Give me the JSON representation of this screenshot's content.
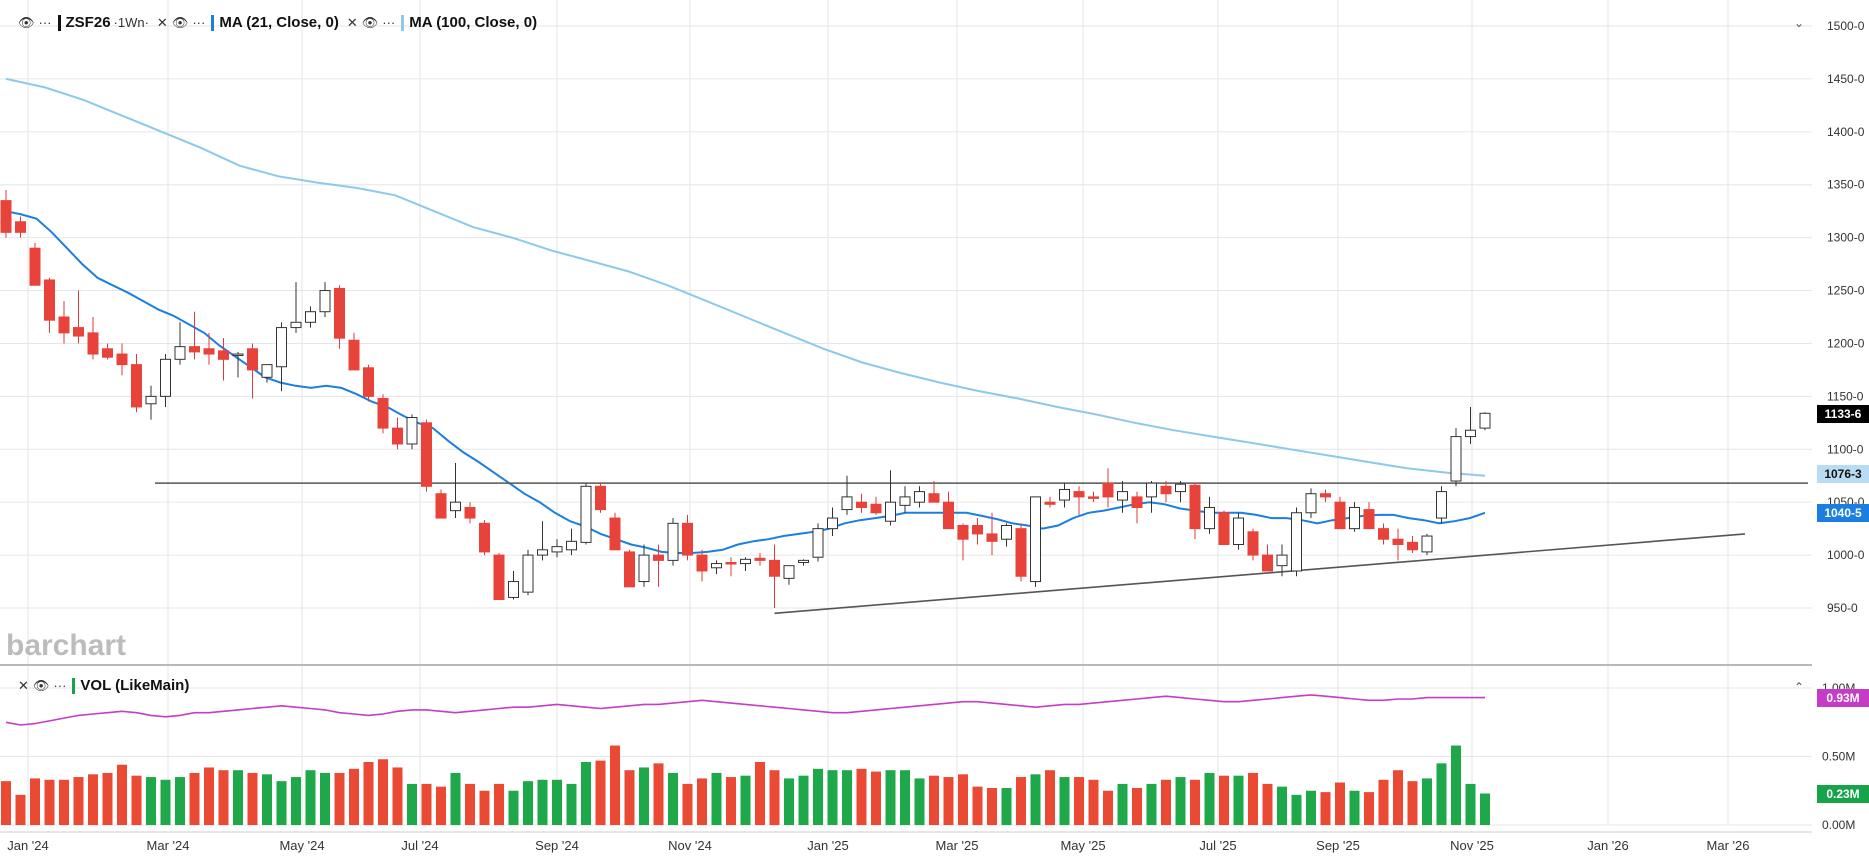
{
  "legend_main": [
    {
      "label": "ZSF26",
      "sub": "·1Wn·",
      "color": "#111111"
    },
    {
      "label": "MA (21, Close, 0)",
      "color": "#1a7fe0"
    },
    {
      "label": "MA (100, Close, 0)",
      "color": "#8ec8ea"
    }
  ],
  "legend_volume": {
    "label": "VOL (LikeMain)",
    "color": "#16a34a"
  },
  "watermark": "barchart",
  "price_tags": [
    {
      "value": "1133-6",
      "bg": "#000000",
      "fg": "#ffffff"
    },
    {
      "value": "1076-3",
      "bg": "#b9dcf2",
      "fg": "#111111"
    },
    {
      "value": "1040-5",
      "bg": "#1a7fe0",
      "fg": "#ffffff"
    }
  ],
  "volume_tags": [
    {
      "value": "0.93M",
      "bg": "#c53cc7",
      "fg": "#ffffff"
    },
    {
      "value": "0.23M",
      "bg": "#16a34a",
      "fg": "#ffffff"
    }
  ],
  "chart_data": {
    "type": "candlestick",
    "symbol": "ZSF26",
    "interval": "1W",
    "price_axis": {
      "ylim": [
        930,
        1510
      ],
      "ticks": [
        "950-0",
        "1000-0",
        "1050-0",
        "1100-0",
        "1150-0",
        "1200-0",
        "1250-0",
        "1300-0",
        "1350-0",
        "1400-0",
        "1450-0",
        "1500-0"
      ]
    },
    "volume_axis": {
      "ylim": [
        0,
        1.0
      ],
      "ticks": [
        "0.00M",
        "0.50M",
        "1.00M"
      ]
    },
    "x_axis": {
      "ticks": [
        "Jan '24",
        "Mar '24",
        "May '24",
        "Jul '24",
        "Sep '24",
        "Nov '24",
        "Jan '25",
        "Mar '25",
        "May '25",
        "Jul '25",
        "Sep '25",
        "Nov '25",
        "Jan '26",
        "Mar '26"
      ]
    },
    "candles": [
      {
        "o": 1335,
        "h": 1345,
        "l": 1300,
        "c": 1305
      },
      {
        "o": 1315,
        "h": 1320,
        "l": 1300,
        "c": 1305
      },
      {
        "o": 1290,
        "h": 1295,
        "l": 1255,
        "c": 1255
      },
      {
        "o": 1260,
        "h": 1262,
        "l": 1210,
        "c": 1222
      },
      {
        "o": 1225,
        "h": 1240,
        "l": 1200,
        "c": 1210
      },
      {
        "o": 1215,
        "h": 1250,
        "l": 1200,
        "c": 1207
      },
      {
        "o": 1210,
        "h": 1225,
        "l": 1185,
        "c": 1190
      },
      {
        "o": 1195,
        "h": 1200,
        "l": 1185,
        "c": 1187
      },
      {
        "o": 1190,
        "h": 1200,
        "l": 1170,
        "c": 1180
      },
      {
        "o": 1180,
        "h": 1190,
        "l": 1135,
        "c": 1140
      },
      {
        "o": 1143,
        "h": 1160,
        "l": 1128,
        "c": 1150
      },
      {
        "o": 1150,
        "h": 1190,
        "l": 1140,
        "c": 1185
      },
      {
        "o": 1185,
        "h": 1220,
        "l": 1180,
        "c": 1197
      },
      {
        "o": 1197,
        "h": 1230,
        "l": 1185,
        "c": 1192
      },
      {
        "o": 1195,
        "h": 1210,
        "l": 1180,
        "c": 1190
      },
      {
        "o": 1193,
        "h": 1205,
        "l": 1165,
        "c": 1185
      },
      {
        "o": 1190,
        "h": 1192,
        "l": 1168,
        "c": 1190
      },
      {
        "o": 1195,
        "h": 1200,
        "l": 1148,
        "c": 1175
      },
      {
        "o": 1168,
        "h": 1180,
        "l": 1163,
        "c": 1180
      },
      {
        "o": 1178,
        "h": 1220,
        "l": 1155,
        "c": 1215
      },
      {
        "o": 1215,
        "h": 1258,
        "l": 1210,
        "c": 1220
      },
      {
        "o": 1220,
        "h": 1235,
        "l": 1215,
        "c": 1230
      },
      {
        "o": 1230,
        "h": 1258,
        "l": 1225,
        "c": 1250
      },
      {
        "o": 1252,
        "h": 1255,
        "l": 1195,
        "c": 1205
      },
      {
        "o": 1203,
        "h": 1210,
        "l": 1175,
        "c": 1175
      },
      {
        "o": 1177,
        "h": 1180,
        "l": 1145,
        "c": 1150
      },
      {
        "o": 1148,
        "h": 1152,
        "l": 1115,
        "c": 1120
      },
      {
        "o": 1120,
        "h": 1130,
        "l": 1100,
        "c": 1105
      },
      {
        "o": 1105,
        "h": 1133,
        "l": 1100,
        "c": 1130
      },
      {
        "o": 1125,
        "h": 1128,
        "l": 1060,
        "c": 1065
      },
      {
        "o": 1058,
        "h": 1062,
        "l": 1035,
        "c": 1035
      },
      {
        "o": 1042,
        "h": 1087,
        "l": 1035,
        "c": 1050
      },
      {
        "o": 1045,
        "h": 1050,
        "l": 1030,
        "c": 1035
      },
      {
        "o": 1030,
        "h": 1033,
        "l": 1000,
        "c": 1003
      },
      {
        "o": 1000,
        "h": 1002,
        "l": 958,
        "c": 958
      },
      {
        "o": 960,
        "h": 985,
        "l": 958,
        "c": 975
      },
      {
        "o": 965,
        "h": 1005,
        "l": 962,
        "c": 1000
      },
      {
        "o": 1000,
        "h": 1032,
        "l": 995,
        "c": 1005
      },
      {
        "o": 1003,
        "h": 1015,
        "l": 998,
        "c": 1008
      },
      {
        "o": 1005,
        "h": 1025,
        "l": 1000,
        "c": 1013
      },
      {
        "o": 1012,
        "h": 1068,
        "l": 1010,
        "c": 1065
      },
      {
        "o": 1065,
        "h": 1068,
        "l": 1040,
        "c": 1043
      },
      {
        "o": 1035,
        "h": 1040,
        "l": 1005,
        "c": 1005
      },
      {
        "o": 1003,
        "h": 1005,
        "l": 970,
        "c": 970
      },
      {
        "o": 975,
        "h": 1010,
        "l": 970,
        "c": 1000
      },
      {
        "o": 1000,
        "h": 1010,
        "l": 970,
        "c": 995
      },
      {
        "o": 995,
        "h": 1035,
        "l": 990,
        "c": 1030
      },
      {
        "o": 1030,
        "h": 1038,
        "l": 995,
        "c": 1000
      },
      {
        "o": 1000,
        "h": 1005,
        "l": 975,
        "c": 985
      },
      {
        "o": 988,
        "h": 995,
        "l": 982,
        "c": 992
      },
      {
        "o": 993,
        "h": 998,
        "l": 980,
        "c": 992
      },
      {
        "o": 992,
        "h": 998,
        "l": 985,
        "c": 996
      },
      {
        "o": 997,
        "h": 1002,
        "l": 990,
        "c": 995
      },
      {
        "o": 995,
        "h": 1010,
        "l": 950,
        "c": 980
      },
      {
        "o": 978,
        "h": 990,
        "l": 972,
        "c": 990
      },
      {
        "o": 993,
        "h": 996,
        "l": 990,
        "c": 995
      },
      {
        "o": 998,
        "h": 1030,
        "l": 994,
        "c": 1025
      },
      {
        "o": 1025,
        "h": 1045,
        "l": 1018,
        "c": 1035
      },
      {
        "o": 1043,
        "h": 1075,
        "l": 1038,
        "c": 1055
      },
      {
        "o": 1050,
        "h": 1058,
        "l": 1040,
        "c": 1045
      },
      {
        "o": 1048,
        "h": 1055,
        "l": 1038,
        "c": 1040
      },
      {
        "o": 1032,
        "h": 1080,
        "l": 1028,
        "c": 1050
      },
      {
        "o": 1047,
        "h": 1065,
        "l": 1040,
        "c": 1055
      },
      {
        "o": 1050,
        "h": 1065,
        "l": 1045,
        "c": 1060
      },
      {
        "o": 1058,
        "h": 1070,
        "l": 1050,
        "c": 1050
      },
      {
        "o": 1050,
        "h": 1060,
        "l": 1025,
        "c": 1025
      },
      {
        "o": 1028,
        "h": 1030,
        "l": 995,
        "c": 1015
      },
      {
        "o": 1028,
        "h": 1035,
        "l": 1010,
        "c": 1020
      },
      {
        "o": 1020,
        "h": 1040,
        "l": 1000,
        "c": 1013
      },
      {
        "o": 1015,
        "h": 1030,
        "l": 1008,
        "c": 1028
      },
      {
        "o": 1025,
        "h": 1030,
        "l": 975,
        "c": 980
      },
      {
        "o": 975,
        "h": 1055,
        "l": 970,
        "c": 1055
      },
      {
        "o": 1050,
        "h": 1055,
        "l": 1045,
        "c": 1048
      },
      {
        "o": 1052,
        "h": 1068,
        "l": 1045,
        "c": 1062
      },
      {
        "o": 1060,
        "h": 1065,
        "l": 1038,
        "c": 1055
      },
      {
        "o": 1055,
        "h": 1060,
        "l": 1050,
        "c": 1054
      },
      {
        "o": 1068,
        "h": 1082,
        "l": 1045,
        "c": 1055
      },
      {
        "o": 1052,
        "h": 1070,
        "l": 1040,
        "c": 1060
      },
      {
        "o": 1055,
        "h": 1060,
        "l": 1030,
        "c": 1045
      },
      {
        "o": 1055,
        "h": 1070,
        "l": 1040,
        "c": 1068
      },
      {
        "o": 1065,
        "h": 1070,
        "l": 1050,
        "c": 1058
      },
      {
        "o": 1060,
        "h": 1070,
        "l": 1050,
        "c": 1067
      },
      {
        "o": 1066,
        "h": 1068,
        "l": 1015,
        "c": 1025
      },
      {
        "o": 1025,
        "h": 1055,
        "l": 1020,
        "c": 1045
      },
      {
        "o": 1040,
        "h": 1042,
        "l": 1010,
        "c": 1010
      },
      {
        "o": 1010,
        "h": 1040,
        "l": 1005,
        "c": 1035
      },
      {
        "o": 1022,
        "h": 1025,
        "l": 995,
        "c": 1000
      },
      {
        "o": 1000,
        "h": 1010,
        "l": 988,
        "c": 985
      },
      {
        "o": 990,
        "h": 1010,
        "l": 980,
        "c": 1000
      },
      {
        "o": 985,
        "h": 1045,
        "l": 980,
        "c": 1040
      },
      {
        "o": 1040,
        "h": 1063,
        "l": 1035,
        "c": 1058
      },
      {
        "o": 1058,
        "h": 1062,
        "l": 1050,
        "c": 1055
      },
      {
        "o": 1050,
        "h": 1055,
        "l": 1025,
        "c": 1025
      },
      {
        "o": 1025,
        "h": 1050,
        "l": 1022,
        "c": 1045
      },
      {
        "o": 1043,
        "h": 1050,
        "l": 1025,
        "c": 1025
      },
      {
        "o": 1025,
        "h": 1030,
        "l": 1010,
        "c": 1015
      },
      {
        "o": 1015,
        "h": 1025,
        "l": 995,
        "c": 1010
      },
      {
        "o": 1012,
        "h": 1018,
        "l": 1002,
        "c": 1005
      },
      {
        "o": 1003,
        "h": 1020,
        "l": 1000,
        "c": 1018
      },
      {
        "o": 1035,
        "h": 1065,
        "l": 1030,
        "c": 1060
      },
      {
        "o": 1070,
        "h": 1120,
        "l": 1065,
        "c": 1112
      },
      {
        "o": 1112,
        "h": 1140,
        "l": 1105,
        "c": 1118
      },
      {
        "o": 1120,
        "h": 1135,
        "l": 1118,
        "c": 1134
      }
    ],
    "ma21": [
      1325,
      1322,
      1318,
      1305,
      1290,
      1275,
      1262,
      1255,
      1248,
      1240,
      1232,
      1226,
      1218,
      1210,
      1198,
      1188,
      1178,
      1168,
      1163,
      1160,
      1158,
      1160,
      1158,
      1152,
      1145,
      1140,
      1132,
      1125,
      1120,
      1108,
      1097,
      1088,
      1078,
      1068,
      1058,
      1050,
      1040,
      1032,
      1027,
      1020,
      1015,
      1010,
      1007,
      1003,
      1002,
      1002,
      1003,
      1005,
      1010,
      1013,
      1015,
      1018,
      1020,
      1022,
      1025,
      1030,
      1033,
      1035,
      1037,
      1040,
      1040,
      1040,
      1040,
      1040,
      1037,
      1034,
      1030,
      1028,
      1025,
      1028,
      1035,
      1040,
      1042,
      1045,
      1048,
      1050,
      1048,
      1044,
      1042,
      1040,
      1040,
      1040,
      1038,
      1035,
      1035,
      1033,
      1030,
      1033,
      1035,
      1037,
      1038,
      1038,
      1035,
      1033,
      1030,
      1032,
      1035,
      1040
    ],
    "ma100": [
      1450,
      1442,
      1430,
      1415,
      1400,
      1385,
      1368,
      1358,
      1352,
      1347,
      1340,
      1325,
      1310,
      1300,
      1288,
      1278,
      1268,
      1255,
      1240,
      1225,
      1210,
      1195,
      1182,
      1172,
      1163,
      1155,
      1148,
      1140,
      1133,
      1125,
      1118,
      1112,
      1106,
      1100,
      1094,
      1088,
      1082,
      1078,
      1075
    ],
    "volume": [
      0.32,
      0.22,
      0.34,
      0.33,
      0.33,
      0.35,
      0.37,
      0.38,
      0.44,
      0.36,
      0.35,
      0.33,
      0.35,
      0.38,
      0.42,
      0.4,
      0.4,
      0.38,
      0.37,
      0.32,
      0.35,
      0.4,
      0.38,
      0.38,
      0.41,
      0.46,
      0.48,
      0.42,
      0.3,
      0.3,
      0.28,
      0.38,
      0.3,
      0.25,
      0.3,
      0.25,
      0.32,
      0.33,
      0.33,
      0.3,
      0.46,
      0.47,
      0.58,
      0.4,
      0.42,
      0.45,
      0.38,
      0.3,
      0.34,
      0.38,
      0.35,
      0.36,
      0.46,
      0.4,
      0.34,
      0.36,
      0.41,
      0.4,
      0.4,
      0.41,
      0.39,
      0.4,
      0.4,
      0.34,
      0.36,
      0.35,
      0.37,
      0.28,
      0.27,
      0.27,
      0.35,
      0.37,
      0.4,
      0.35,
      0.35,
      0.33,
      0.25,
      0.3,
      0.27,
      0.3,
      0.33,
      0.35,
      0.33,
      0.38,
      0.36,
      0.36,
      0.38,
      0.3,
      0.28,
      0.22,
      0.25,
      0.24,
      0.31,
      0.25,
      0.24,
      0.33,
      0.4,
      0.32,
      0.34,
      0.45,
      0.58,
      0.3,
      0.23
    ],
    "volume_avg": [
      0.75,
      0.73,
      0.74,
      0.76,
      0.78,
      0.8,
      0.81,
      0.82,
      0.83,
      0.82,
      0.8,
      0.79,
      0.8,
      0.82,
      0.82,
      0.83,
      0.84,
      0.85,
      0.86,
      0.87,
      0.86,
      0.85,
      0.84,
      0.82,
      0.81,
      0.8,
      0.81,
      0.83,
      0.84,
      0.84,
      0.83,
      0.82,
      0.83,
      0.84,
      0.85,
      0.86,
      0.86,
      0.87,
      0.88,
      0.87,
      0.86,
      0.85,
      0.86,
      0.87,
      0.88,
      0.88,
      0.89,
      0.9,
      0.91,
      0.9,
      0.89,
      0.88,
      0.87,
      0.86,
      0.85,
      0.84,
      0.83,
      0.82,
      0.82,
      0.83,
      0.84,
      0.85,
      0.86,
      0.87,
      0.88,
      0.89,
      0.9,
      0.9,
      0.89,
      0.88,
      0.87,
      0.86,
      0.87,
      0.88,
      0.88,
      0.89,
      0.9,
      0.91,
      0.92,
      0.93,
      0.94,
      0.93,
      0.92,
      0.91,
      0.9,
      0.9,
      0.91,
      0.92,
      0.93,
      0.94,
      0.95,
      0.94,
      0.93,
      0.92,
      0.91,
      0.91,
      0.92,
      0.92,
      0.93,
      0.93,
      0.93,
      0.93,
      0.93
    ],
    "trendlines": [
      {
        "name": "resistance",
        "x1": 10,
        "y1": 1068,
        "x2": 125,
        "y2": 1068
      },
      {
        "name": "support",
        "x1": 53,
        "y1": 945,
        "x2": 118,
        "y2": 1020
      }
    ]
  }
}
